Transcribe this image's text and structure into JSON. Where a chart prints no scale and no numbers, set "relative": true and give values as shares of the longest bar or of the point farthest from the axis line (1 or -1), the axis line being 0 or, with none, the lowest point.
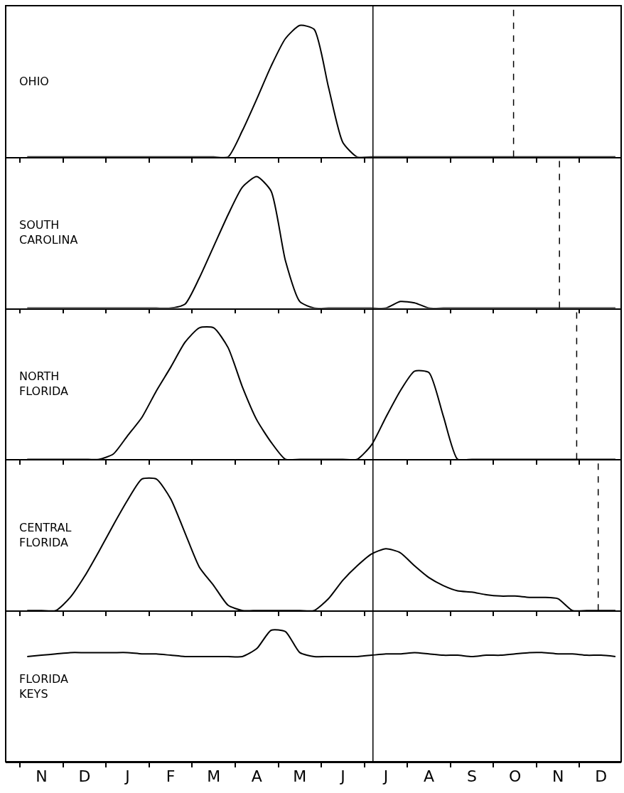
{
  "chart_data": [
    {
      "type": "line",
      "relative": true,
      "title": "OHIO",
      "categories": [
        null,
        null,
        null,
        null,
        null,
        null,
        null,
        null,
        null,
        null,
        null,
        null,
        null,
        null,
        null,
        null,
        null,
        null,
        null,
        null,
        null,
        null,
        null,
        null,
        null,
        null,
        null,
        null,
        null,
        null,
        null,
        null,
        null,
        null,
        null,
        null,
        null,
        null,
        null,
        null,
        null,
        null
      ],
      "series": [
        {
          "color": "#000000",
          "values": [
            0,
            0,
            0,
            0,
            0,
            0,
            0,
            0,
            0,
            0,
            0,
            0,
            0,
            0,
            0,
            0.2,
            0.44,
            0.69,
            0.9,
            1,
            0.97,
            0.53,
            0.11,
            0,
            0,
            0,
            0,
            0,
            0,
            0,
            0,
            0,
            0,
            0,
            0,
            0,
            0,
            0,
            0,
            0,
            0,
            0
          ]
        }
      ],
      "tick_labels": false
    },
    {
      "type": "line",
      "relative": true,
      "title": "SOUTH\nCAROLINA",
      "categories": [
        null,
        null,
        null,
        null,
        null,
        null,
        null,
        null,
        null,
        null,
        null,
        null,
        null,
        null,
        null,
        null,
        null,
        null,
        null,
        null,
        null,
        null,
        null,
        null,
        null,
        null,
        null,
        null,
        null,
        null,
        null,
        null,
        null,
        null,
        null,
        null,
        null,
        null,
        null,
        null,
        null,
        null
      ],
      "series": [
        {
          "color": "#000000",
          "values": [
            0,
            0,
            0,
            0,
            0,
            0,
            0,
            0,
            0,
            0,
            0,
            0.03,
            0.23,
            0.47,
            0.71,
            0.92,
            1,
            0.89,
            0.36,
            0.05,
            0,
            0,
            0,
            0,
            0,
            0,
            0.05,
            0.04,
            0,
            0,
            0,
            0,
            0,
            0,
            0,
            0,
            0,
            0,
            0,
            0,
            0,
            0
          ]
        }
      ],
      "tick_labels": false
    },
    {
      "type": "line",
      "relative": true,
      "title": "NORTH\nFLORIDA",
      "categories": [
        null,
        null,
        null,
        null,
        null,
        null,
        null,
        null,
        null,
        null,
        null,
        null,
        null,
        null,
        null,
        null,
        null,
        null,
        null,
        null,
        null,
        null,
        null,
        null,
        null,
        null,
        null,
        null,
        null,
        null,
        null,
        null,
        null,
        null,
        null,
        null,
        null,
        null,
        null,
        null,
        null,
        null
      ],
      "series": [
        {
          "color": "#000000",
          "values": [
            0,
            0,
            0,
            0,
            0,
            0,
            0.04,
            0.18,
            0.32,
            0.52,
            0.7,
            0.89,
            1,
            1,
            0.85,
            0.55,
            0.3,
            0.13,
            0,
            0,
            0,
            0,
            0,
            0,
            0.11,
            0.32,
            0.52,
            0.67,
            0.66,
            0.33,
            0,
            0,
            0,
            0,
            0,
            0,
            0,
            0,
            0,
            0,
            0,
            0
          ]
        }
      ],
      "tick_labels": false
    },
    {
      "type": "line",
      "relative": true,
      "title": "CENTRAL\nFLORIDA",
      "categories": [
        null,
        null,
        null,
        null,
        null,
        null,
        null,
        null,
        null,
        null,
        null,
        null,
        null,
        null,
        null,
        null,
        null,
        null,
        null,
        null,
        null,
        null,
        null,
        null,
        null,
        null,
        null,
        null,
        null,
        null,
        null,
        null,
        null,
        null,
        null,
        null,
        null,
        null,
        null,
        null,
        null,
        null
      ],
      "series": [
        {
          "color": "#000000",
          "values": [
            0,
            0,
            0,
            0.1,
            0.26,
            0.45,
            0.65,
            0.84,
            1,
            1,
            0.85,
            0.59,
            0.33,
            0.19,
            0.04,
            0,
            0,
            0,
            0,
            0,
            0,
            0.09,
            0.23,
            0.34,
            0.43,
            0.47,
            0.44,
            0.34,
            0.25,
            0.19,
            0.15,
            0.14,
            0.12,
            0.11,
            0.11,
            0.1,
            0.1,
            0.09,
            0,
            0,
            0,
            0
          ]
        }
      ],
      "tick_labels": false
    },
    {
      "type": "line",
      "relative": true,
      "title": "FLORIDA\nKEYS",
      "categories": [
        null,
        "N",
        null,
        null,
        "D",
        null,
        null,
        "J",
        null,
        null,
        "F",
        null,
        null,
        "M",
        null,
        null,
        "A",
        null,
        null,
        "M",
        null,
        null,
        "J",
        null,
        null,
        "J",
        null,
        null,
        "A",
        null,
        null,
        "S",
        null,
        null,
        "O",
        null,
        null,
        "N",
        null,
        null,
        "D",
        null
      ],
      "series": [
        {
          "color": "#000000",
          "values": [
            0.8,
            0.81,
            0.82,
            0.83,
            0.83,
            0.83,
            0.83,
            0.83,
            0.82,
            0.82,
            0.81,
            0.8,
            0.8,
            0.8,
            0.8,
            0.8,
            0.86,
            1,
            0.99,
            0.83,
            0.8,
            0.8,
            0.8,
            0.8,
            0.81,
            0.82,
            0.82,
            0.83,
            0.82,
            0.81,
            0.81,
            0.8,
            0.81,
            0.81,
            0.82,
            0.83,
            0.83,
            0.82,
            0.82,
            0.81,
            0.81,
            0.8
          ]
        }
      ],
      "tick_labels": "x"
    }
  ]
}
